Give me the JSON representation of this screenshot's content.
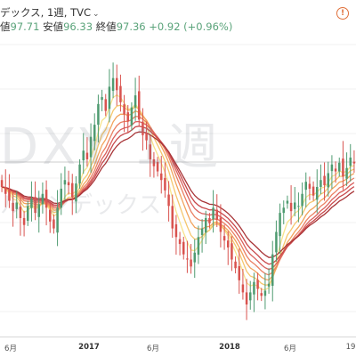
{
  "header": {
    "title": "デックス, 1週, TVC",
    "ohlc": [
      {
        "label": "値",
        "value": "97.71"
      },
      {
        "label": "安値",
        "value": "96.33"
      },
      {
        "label": "終値",
        "value": "97.36"
      }
    ],
    "change": "+0.92 (+0.96%)",
    "alert_icon": "!"
  },
  "watermark": {
    "symbol": "DXY 1週",
    "name": "ルインデックス"
  },
  "x_axis": {
    "ticks": [
      {
        "label": "6月",
        "bold": false
      },
      {
        "label": "2017",
        "bold": true
      },
      {
        "label": "6月",
        "bold": false
      },
      {
        "label": "2018",
        "bold": true
      },
      {
        "label": "6月",
        "bold": false
      },
      {
        "label": "19",
        "bold": false
      }
    ]
  },
  "colors": {
    "up": "#4f9b71",
    "down": "#d9534f",
    "ribbon": [
      "#f7e38c",
      "#f5c76e",
      "#f2a35c",
      "#ea8063",
      "#d9605d",
      "#c8474a",
      "#a83538"
    ]
  },
  "chart_data": {
    "type": "candlestick",
    "series_close": [
      96.0,
      95.6,
      95.2,
      94.6,
      95.1,
      94.2,
      93.8,
      94.9,
      95.3,
      94.5,
      95.0,
      95.6,
      94.8,
      94.0,
      93.6,
      94.8,
      95.9,
      96.4,
      96.1,
      95.4,
      96.2,
      97.3,
      98.1,
      97.6,
      98.9,
      99.6,
      100.8,
      101.2,
      100.4,
      101.8,
      102.3,
      101.6,
      100.9,
      100.2,
      99.8,
      100.6,
      101.3,
      99.9,
      99.0,
      98.7,
      97.6,
      97.2,
      96.9,
      96.4,
      95.8,
      94.9,
      93.6,
      93.1,
      92.7,
      92.1,
      91.8,
      91.4,
      92.2,
      93.1,
      93.6,
      94.2,
      93.9,
      94.8,
      94.1,
      93.4,
      92.9,
      92.5,
      91.8,
      91.3,
      90.6,
      89.9,
      89.2,
      89.9,
      90.5,
      90.1,
      89.7,
      90.0,
      90.4,
      92.1,
      93.4,
      94.5,
      94.8,
      95.2,
      94.6,
      95.1,
      94.9,
      95.6,
      96.3,
      95.9,
      95.5,
      96.0,
      96.4,
      96.1,
      96.8,
      97.3,
      96.9,
      97.4,
      96.6,
      97.1,
      97.7,
      97.36
    ],
    "ribbon_periods": [
      5,
      8,
      11,
      14,
      17,
      20,
      24
    ]
  }
}
